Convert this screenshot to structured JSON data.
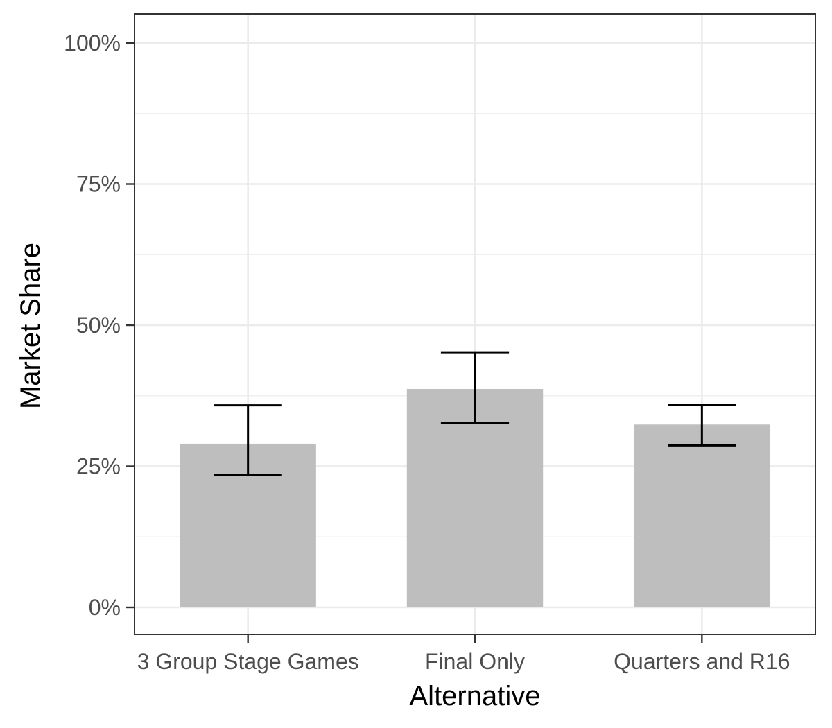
{
  "chart_data": {
    "type": "bar",
    "title": "",
    "xlabel": "Alternative",
    "ylabel": "Market Share",
    "categories": [
      "3 Group Stage Games",
      "Final Only",
      "Quarters and R16"
    ],
    "values": [
      0.29,
      0.387,
      0.324
    ],
    "error_bars": {
      "lower": [
        0.234,
        0.327,
        0.287
      ],
      "upper": [
        0.358,
        0.452,
        0.359
      ]
    },
    "ylim": [
      -0.048,
      1.045
    ],
    "y_ticks": [
      0,
      0.25,
      0.5,
      0.75,
      1.0
    ],
    "y_tick_labels": [
      "0%",
      "25%",
      "50%",
      "75%",
      "100%"
    ],
    "grid": true,
    "legend": "none",
    "colors": {
      "bar": "#bebebe",
      "error_bar": "#000000",
      "grid": "#ebebeb",
      "panel_border": "#333333",
      "tick_text": "#4d4d4d"
    }
  }
}
